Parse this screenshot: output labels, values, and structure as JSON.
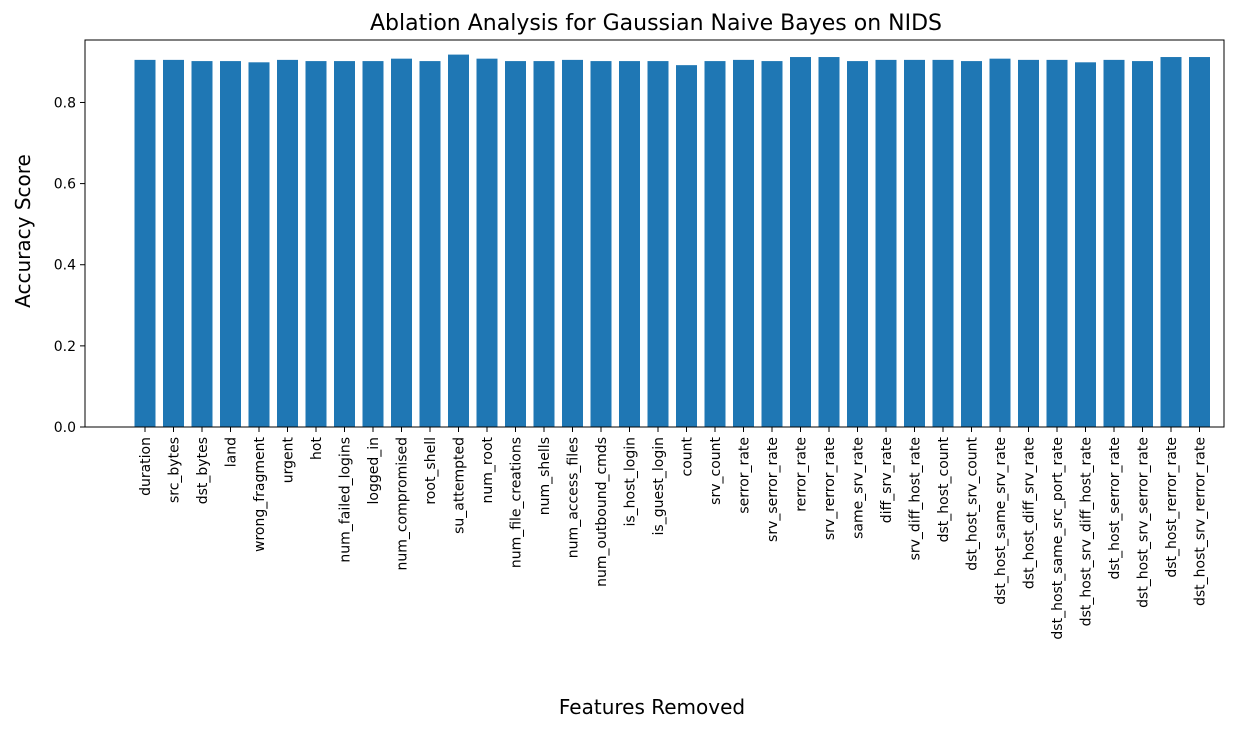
{
  "chart_data": {
    "type": "bar",
    "title": "Ablation Analysis for Gaussian Naive Bayes on NIDS",
    "xlabel": "Features Removed",
    "ylabel": "Accuracy Score",
    "ylim": [
      0,
      0.954
    ],
    "yticks": [
      "0.0",
      "0.2",
      "0.4",
      "0.6",
      "0.8"
    ],
    "grid": false,
    "bar_color": "#1f77b4",
    "categories": [
      "duration",
      "src_bytes",
      "dst_bytes",
      "land",
      "wrong_fragment",
      "urgent",
      "hot",
      "num_failed_logins",
      "logged_in",
      "num_compromised",
      "root_shell",
      "su_attempted",
      "num_root",
      "num_file_creations",
      "num_shells",
      "num_access_files",
      "num_outbound_cmds",
      "is_host_login",
      "is_guest_login",
      "count",
      "srv_count",
      "serror_rate",
      "srv_serror_rate",
      "rerror_rate",
      "srv_rerror_rate",
      "same_srv_rate",
      "diff_srv_rate",
      "srv_diff_host_rate",
      "dst_host_count",
      "dst_host_srv_count",
      "dst_host_same_srv_rate",
      "dst_host_diff_srv_rate",
      "dst_host_same_src_port_rate",
      "dst_host_srv_diff_host_rate",
      "dst_host_serror_rate",
      "dst_host_srv_serror_rate",
      "dst_host_rerror_rate",
      "dst_host_srv_rerror_rate"
    ],
    "values": [
      0.905,
      0.905,
      0.902,
      0.902,
      0.899,
      0.905,
      0.902,
      0.902,
      0.902,
      0.908,
      0.902,
      0.918,
      0.908,
      0.902,
      0.902,
      0.905,
      0.902,
      0.902,
      0.902,
      0.892,
      0.902,
      0.905,
      0.902,
      0.912,
      0.912,
      0.902,
      0.905,
      0.905,
      0.905,
      0.902,
      0.908,
      0.905,
      0.905,
      0.899,
      0.905,
      0.902,
      0.912,
      0.912
    ]
  }
}
